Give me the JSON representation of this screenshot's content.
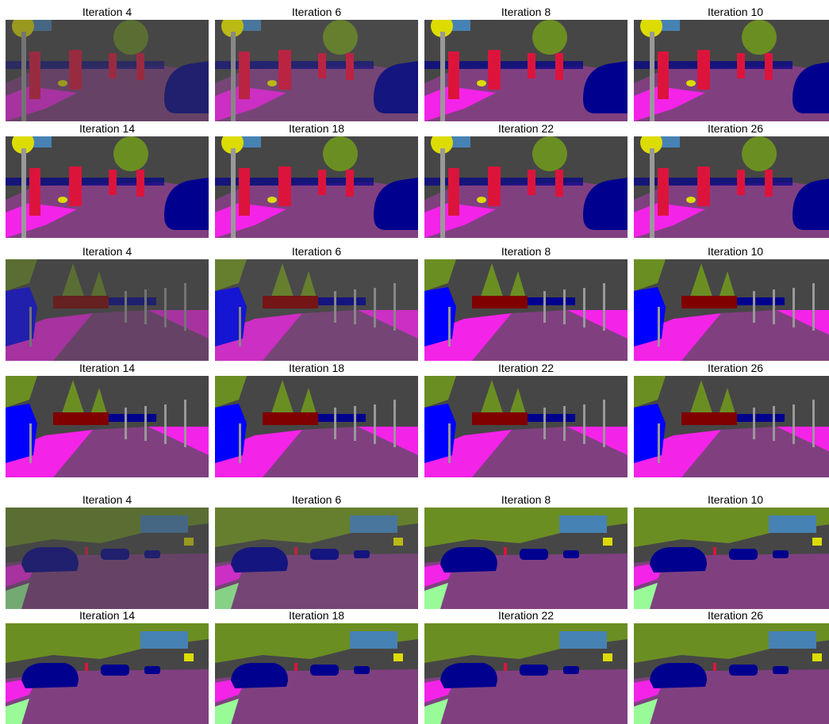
{
  "groups": [
    {
      "rows": [
        [
          "Iteration 4",
          "Iteration 6",
          "Iteration 8",
          "Iteration 10"
        ],
        [
          "Iteration 14",
          "Iteration 18",
          "Iteration 22",
          "Iteration 26"
        ]
      ]
    },
    {
      "rows": [
        [
          "Iteration 4",
          "Iteration 6",
          "Iteration 8",
          "Iteration 10"
        ],
        [
          "Iteration 14",
          "Iteration 18",
          "Iteration 22",
          "Iteration 26"
        ]
      ]
    },
    {
      "rows": [
        [
          "Iteration 4",
          "Iteration 6",
          "Iteration 8",
          "Iteration 10"
        ],
        [
          "Iteration 14",
          "Iteration 18",
          "Iteration 22",
          "Iteration 26"
        ]
      ]
    }
  ]
}
